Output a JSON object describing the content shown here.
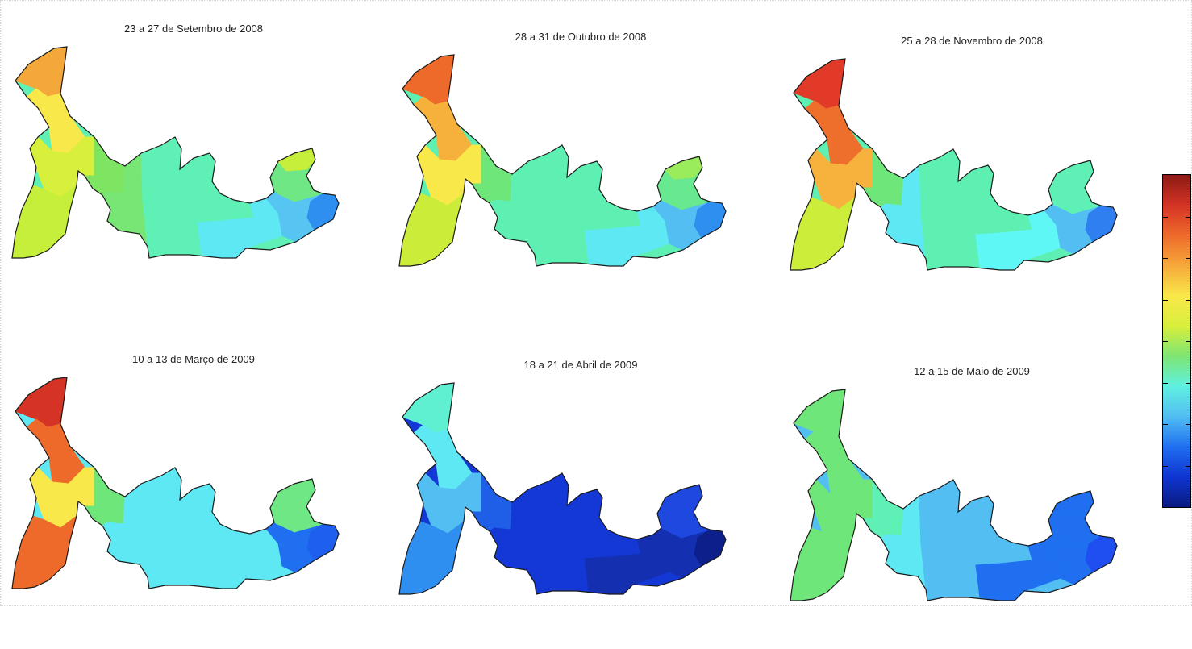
{
  "panels": [
    {
      "title": "23 a 27 de Setembro de 2008",
      "zones": {
        "tip": "#f4a83a",
        "north_arm": "#f9e84a",
        "upper_arm": "#d8ef3c",
        "lower_arm": "#c6ef3b",
        "neck": "#7ee562",
        "west_body": "#78e674",
        "center_body": "#5ff0b5",
        "east_body": "#5ee8f4",
        "east_lobe": "#56c5f2",
        "east_tip": "#2f8ff0",
        "ne_lobe": "#6fe784",
        "ne_tip": "#c6ef3b"
      }
    },
    {
      "title": "28 a 31 de Outubro de 2008",
      "zones": {
        "tip": "#ee6a2a",
        "north_arm": "#f6b13c",
        "upper_arm": "#f9e84a",
        "lower_arm": "#ccec3a",
        "neck": "#6ee67a",
        "west_body": "#5ef0b3",
        "center_body": "#5ef0b3",
        "east_body": "#5ee8f4",
        "east_lobe": "#52bef2",
        "east_tip": "#2f8ff0",
        "ne_lobe": "#68e88f",
        "ne_tip": "#9aec5a"
      }
    },
    {
      "title": "25 a 28 de Novembro de 2008",
      "zones": {
        "tip": "#e23a28",
        "north_arm": "#ee6f2c",
        "upper_arm": "#f6b23c",
        "lower_arm": "#ccee3a",
        "neck": "#6ee67a",
        "west_body": "#5ee8f4",
        "center_body": "#5ef0b3",
        "east_body": "#5ff6f6",
        "east_lobe": "#52bef2",
        "east_tip": "#2f7ff0",
        "ne_lobe": "#5ff0b5",
        "ne_tip": "#5ff0b5"
      }
    },
    {
      "title": "10 a 13 de Março de 2009",
      "zones": {
        "tip": "#d43325",
        "north_arm": "#ee6a2a",
        "upper_arm": "#f9e84a",
        "lower_arm": "#ee6a2a",
        "neck": "#6ee67a",
        "west_body": "#5ee8f4",
        "center_body": "#5ee8f4",
        "east_body": "#5ee8f4",
        "east_lobe": "#1f6ff0",
        "east_tip": "#1f5ff0",
        "ne_lobe": "#6fe784",
        "ne_tip": "#6fe784"
      }
    },
    {
      "title": "18 a 21 de Abril de 2009",
      "zones": {
        "tip": "#5ef0d0",
        "north_arm": "#5ee8f4",
        "upper_arm": "#52bef2",
        "lower_arm": "#2f8ff0",
        "neck": "#1f5fe8",
        "west_body": "#1438d6",
        "center_body": "#1438d6",
        "east_body": "#1430b0",
        "east_lobe": "#1430b0",
        "east_tip": "#0c1f8a",
        "ne_lobe": "#1f48e0",
        "ne_tip": "#1f48e0"
      }
    },
    {
      "title": "12 a 15 de Maio de 2009",
      "zones": {
        "tip": "#6ee67a",
        "north_arm": "#6ee67a",
        "upper_arm": "#6ee67a",
        "lower_arm": "#6ee67a",
        "neck": "#5ff0b5",
        "west_body": "#5ee8f4",
        "center_body": "#52bef2",
        "east_body": "#1f6ff0",
        "east_lobe": "#1f6ff0",
        "east_tip": "#1f4ff0",
        "ne_lobe": "#1f6ff0",
        "ne_tip": "#1f6ff0"
      }
    }
  ],
  "colorbar": {
    "colors": [
      "#0a1a80",
      "#0f35d2",
      "#1f6ff0",
      "#52bef2",
      "#5ef0e0",
      "#7ee572",
      "#d8ef3c",
      "#f9e84a",
      "#f6a83a",
      "#ee6a2a",
      "#d43325",
      "#8c1a14"
    ],
    "ticks": 7
  }
}
